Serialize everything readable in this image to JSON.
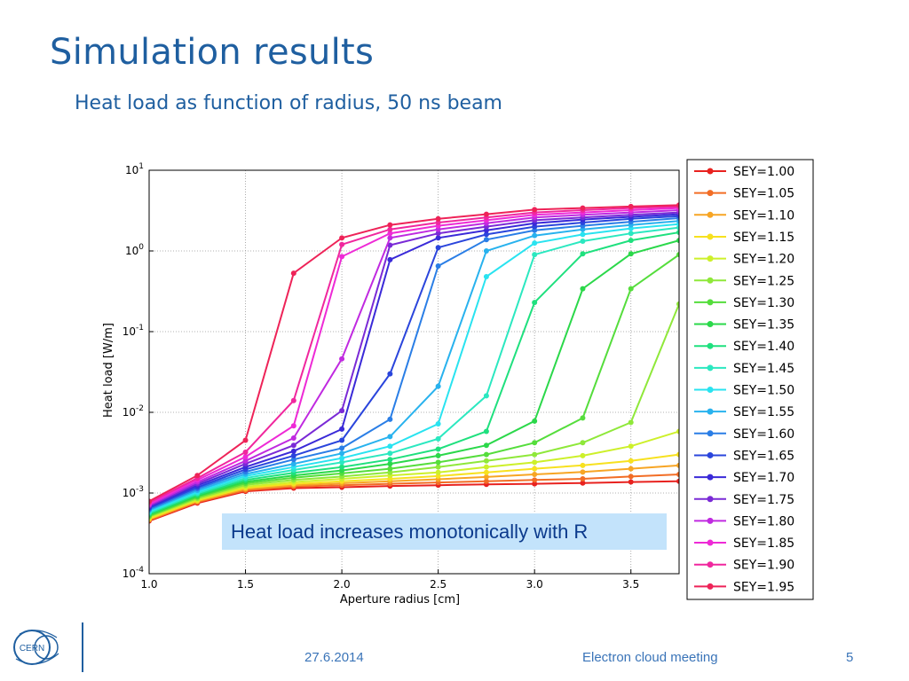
{
  "slide": {
    "title": "Simulation results",
    "subtitle": "Heat load as function of radius, 50 ns beam",
    "callout": "Heat load increases monotonically with R",
    "footer": {
      "date": "27.6.2014",
      "event": "Electron cloud meeting",
      "page": "5"
    },
    "logo_text": "CERN"
  },
  "chart_data": {
    "type": "line",
    "xlabel": "Aperture radius [cm]",
    "ylabel": "Heat load [W/m]",
    "xlim": [
      1.0,
      3.75
    ],
    "ylim": [
      0.0001,
      10
    ],
    "yscale": "log",
    "grid": true,
    "x_ticks": [
      "1.0",
      "1.5",
      "2.0",
      "2.5",
      "3.0",
      "3.5"
    ],
    "y_ticks": [
      "10^1",
      "10^0",
      "10^-1",
      "10^-2",
      "10^-3",
      "10^-4"
    ],
    "legend_position": "outside-right",
    "x": [
      1.0,
      1.25,
      1.5,
      1.75,
      2.0,
      2.25,
      2.5,
      2.75,
      3.0,
      3.25,
      3.5,
      3.75
    ],
    "series": [
      {
        "name": "SEY=1.00",
        "color": "#e8221f",
        "values": [
          0.00045,
          0.00075,
          0.00105,
          0.00115,
          0.00118,
          0.00122,
          0.00125,
          0.00128,
          0.0013,
          0.00133,
          0.00137,
          0.0014
        ]
      },
      {
        "name": "SEY=1.05",
        "color": "#f26d25",
        "values": [
          0.00046,
          0.00077,
          0.00108,
          0.0012,
          0.00125,
          0.0013,
          0.00135,
          0.0014,
          0.00145,
          0.0015,
          0.0016,
          0.0017
        ]
      },
      {
        "name": "SEY=1.10",
        "color": "#f7a524",
        "values": [
          0.00047,
          0.00079,
          0.00112,
          0.00125,
          0.00132,
          0.0014,
          0.00148,
          0.00158,
          0.0017,
          0.00182,
          0.002,
          0.0022
        ]
      },
      {
        "name": "SEY=1.15",
        "color": "#f7e11f",
        "values": [
          0.00048,
          0.00081,
          0.00116,
          0.0013,
          0.0014,
          0.0015,
          0.00162,
          0.0018,
          0.002,
          0.0022,
          0.0025,
          0.003
        ]
      },
      {
        "name": "SEY=1.20",
        "color": "#cdf02a",
        "values": [
          0.0005,
          0.00083,
          0.0012,
          0.00137,
          0.0015,
          0.00165,
          0.0018,
          0.0021,
          0.0024,
          0.0029,
          0.0038,
          0.0058
        ]
      },
      {
        "name": "SEY=1.25",
        "color": "#8fe83a",
        "values": [
          0.00051,
          0.00086,
          0.00126,
          0.00145,
          0.0016,
          0.0018,
          0.0021,
          0.0025,
          0.003,
          0.0042,
          0.0075,
          0.22
        ]
      },
      {
        "name": "SEY=1.30",
        "color": "#55dd3c",
        "values": [
          0.00052,
          0.00089,
          0.00132,
          0.00155,
          0.00175,
          0.002,
          0.0024,
          0.003,
          0.0042,
          0.0085,
          0.34,
          0.9
        ]
      },
      {
        "name": "SEY=1.35",
        "color": "#2bd84a",
        "values": [
          0.00054,
          0.00092,
          0.00138,
          0.00165,
          0.0019,
          0.0023,
          0.0029,
          0.0039,
          0.0078,
          0.34,
          0.92,
          1.35
        ]
      },
      {
        "name": "SEY=1.40",
        "color": "#1fe07e",
        "values": [
          0.00055,
          0.00095,
          0.00145,
          0.00178,
          0.0021,
          0.0026,
          0.0035,
          0.0058,
          0.23,
          0.92,
          1.35,
          1.7
        ]
      },
      {
        "name": "SEY=1.45",
        "color": "#2be8c0",
        "values": [
          0.00057,
          0.00099,
          0.00153,
          0.00193,
          0.0024,
          0.0031,
          0.0047,
          0.016,
          0.9,
          1.32,
          1.65,
          1.95
        ]
      },
      {
        "name": "SEY=1.50",
        "color": "#29e3f0",
        "values": [
          0.00059,
          0.00103,
          0.00162,
          0.0021,
          0.0027,
          0.0038,
          0.0072,
          0.48,
          1.25,
          1.6,
          1.9,
          2.15
        ]
      },
      {
        "name": "SEY=1.55",
        "color": "#28b2ee",
        "values": [
          0.00061,
          0.00108,
          0.00172,
          0.0023,
          0.0031,
          0.005,
          0.021,
          1.0,
          1.55,
          1.85,
          2.1,
          2.35
        ]
      },
      {
        "name": "SEY=1.60",
        "color": "#2a7ee6",
        "values": [
          0.00063,
          0.00113,
          0.00183,
          0.0026,
          0.0036,
          0.0082,
          0.65,
          1.38,
          1.8,
          2.05,
          2.3,
          2.55
        ]
      },
      {
        "name": "SEY=1.65",
        "color": "#2a45dc",
        "values": [
          0.00065,
          0.00118,
          0.00196,
          0.0029,
          0.0045,
          0.03,
          1.1,
          1.6,
          2.0,
          2.25,
          2.5,
          2.7
        ]
      },
      {
        "name": "SEY=1.70",
        "color": "#3a2ad8",
        "values": [
          0.00067,
          0.00124,
          0.0021,
          0.0033,
          0.0062,
          0.78,
          1.45,
          1.8,
          2.2,
          2.45,
          2.65,
          2.85
        ]
      },
      {
        "name": "SEY=1.75",
        "color": "#7a2ad6",
        "values": [
          0.00069,
          0.0013,
          0.0023,
          0.0039,
          0.0105,
          1.18,
          1.65,
          2.0,
          2.4,
          2.6,
          2.8,
          3.0
        ]
      },
      {
        "name": "SEY=1.80",
        "color": "#c02ae0",
        "values": [
          0.00071,
          0.00137,
          0.0025,
          0.0048,
          0.046,
          1.45,
          1.85,
          2.2,
          2.6,
          2.8,
          3.0,
          3.2
        ]
      },
      {
        "name": "SEY=1.85",
        "color": "#ee2ad6",
        "values": [
          0.00073,
          0.00145,
          0.0028,
          0.0068,
          0.85,
          1.65,
          2.05,
          2.4,
          2.8,
          3.0,
          3.2,
          3.4
        ]
      },
      {
        "name": "SEY=1.90",
        "color": "#f0279e",
        "values": [
          0.00076,
          0.00153,
          0.0032,
          0.014,
          1.2,
          1.85,
          2.25,
          2.6,
          3.0,
          3.2,
          3.4,
          3.55
        ]
      },
      {
        "name": "SEY=1.95",
        "color": "#ee2358",
        "values": [
          0.00079,
          0.00165,
          0.0045,
          0.53,
          1.45,
          2.1,
          2.5,
          2.85,
          3.25,
          3.4,
          3.55,
          3.7
        ]
      }
    ]
  }
}
